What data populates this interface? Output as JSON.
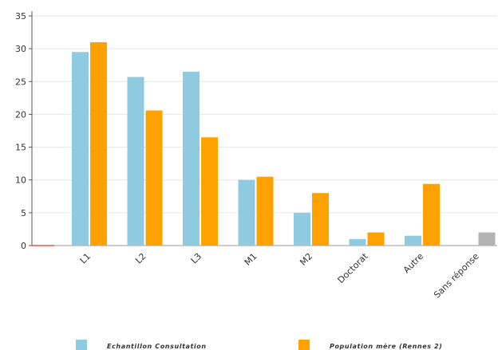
{
  "chart_data": {
    "type": "bar",
    "categories": [
      "L1",
      "L2",
      "L3",
      "M1",
      "M2",
      "Doctorat",
      "Autre",
      "Sans réponse"
    ],
    "series": [
      {
        "name": "Echantillon Consultation",
        "color": "#8ecbe0",
        "values": [
          29.5,
          25.7,
          26.5,
          10.0,
          5.0,
          1.0,
          1.5,
          0
        ]
      },
      {
        "name": "Population mère (Rennes 2)",
        "color": "#ffa200",
        "values": [
          31.0,
          20.6,
          16.5,
          10.5,
          8.0,
          2.0,
          9.4,
          0
        ]
      }
    ],
    "extra_bars": [
      {
        "category": "Sans réponse",
        "value": 2.0,
        "color": "#b3b3b3"
      }
    ],
    "ylim": [
      0,
      35
    ],
    "yticks": [
      "0",
      "5",
      "10",
      "15",
      "20",
      "25",
      "30",
      "35"
    ],
    "grid": true,
    "legend_position": "bottom",
    "title": "",
    "xlabel": "",
    "ylabel": ""
  }
}
